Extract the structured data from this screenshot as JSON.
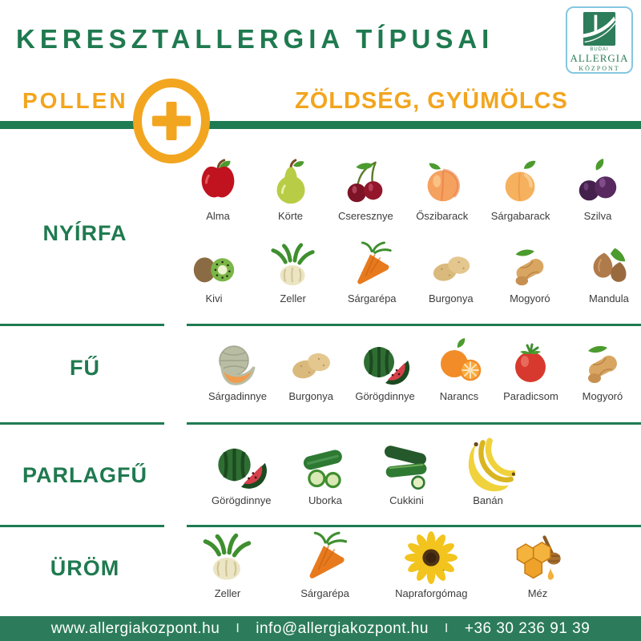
{
  "header": {
    "title": "KERESZTALLERGIA TÍPUSAI",
    "logo": {
      "line1": "BUDAI",
      "line2": "ALLERGIA",
      "line3": "KÖZPONT"
    }
  },
  "equation": {
    "left": "POLLEN",
    "plus_icon": "plus-circle-icon",
    "right": "ZÖLDSÉG, GYÜMÖLCS"
  },
  "colors": {
    "green_text": "#1F7A4F",
    "green_bar": "#1E7B52",
    "orange": "#F2A51F",
    "footer_bg": "#2C7C5B",
    "item_label": "#3C3C3C",
    "logo_border": "#85C7E0",
    "logo_green": "#2E7D5A"
  },
  "sections": [
    {
      "id": "nyirfa",
      "pollen_label": "NYÍRFA",
      "rows": [
        [
          {
            "label": "Alma",
            "icon": "apple-icon"
          },
          {
            "label": "Körte",
            "icon": "pear-icon"
          },
          {
            "label": "Cseresznye",
            "icon": "cherry-icon"
          },
          {
            "label": "Őszibarack",
            "icon": "peach-icon"
          },
          {
            "label": "Sárgabarack",
            "icon": "apricot-icon"
          },
          {
            "label": "Szilva",
            "icon": "plum-icon"
          }
        ],
        [
          {
            "label": "Kivi",
            "icon": "kiwi-icon"
          },
          {
            "label": "Zeller",
            "icon": "celery-icon"
          },
          {
            "label": "Sárgarépa",
            "icon": "carrot-icon"
          },
          {
            "label": "Burgonya",
            "icon": "potato-icon"
          },
          {
            "label": "Mogyoró",
            "icon": "peanut-icon"
          },
          {
            "label": "Mandula",
            "icon": "almond-icon"
          }
        ]
      ]
    },
    {
      "id": "fu",
      "pollen_label": "FŰ",
      "rows": [
        [
          {
            "label": "Sárgadinnye",
            "icon": "cantaloupe-icon"
          },
          {
            "label": "Burgonya",
            "icon": "potato-icon"
          },
          {
            "label": "Görögdinnye",
            "icon": "watermelon-icon"
          },
          {
            "label": "Narancs",
            "icon": "orange-icon"
          },
          {
            "label": "Paradicsom",
            "icon": "tomato-icon"
          },
          {
            "label": "Mogyoró",
            "icon": "peanut-icon"
          }
        ]
      ]
    },
    {
      "id": "parlagfu",
      "pollen_label": "PARLAGFŰ",
      "rows": [
        [
          {
            "label": "Görögdinnye",
            "icon": "watermelon-icon"
          },
          {
            "label": "Uborka",
            "icon": "cucumber-icon"
          },
          {
            "label": "Cukkini",
            "icon": "zucchini-icon"
          },
          {
            "label": "Banán",
            "icon": "banana-icon"
          }
        ]
      ]
    },
    {
      "id": "urom",
      "pollen_label": "ÜRÖM",
      "rows": [
        [
          {
            "label": "Zeller",
            "icon": "celery-icon"
          },
          {
            "label": "Sárgarépa",
            "icon": "carrot-icon"
          },
          {
            "label": "Napraforgómag",
            "icon": "sunflower-icon"
          },
          {
            "label": "Méz",
            "icon": "honey-icon"
          }
        ]
      ]
    }
  ],
  "footer": {
    "website": "www.allergiakozpont.hu",
    "separator": "I",
    "email": "info@allergiakozpont.hu",
    "phone": "+36 30 236 91 39"
  }
}
